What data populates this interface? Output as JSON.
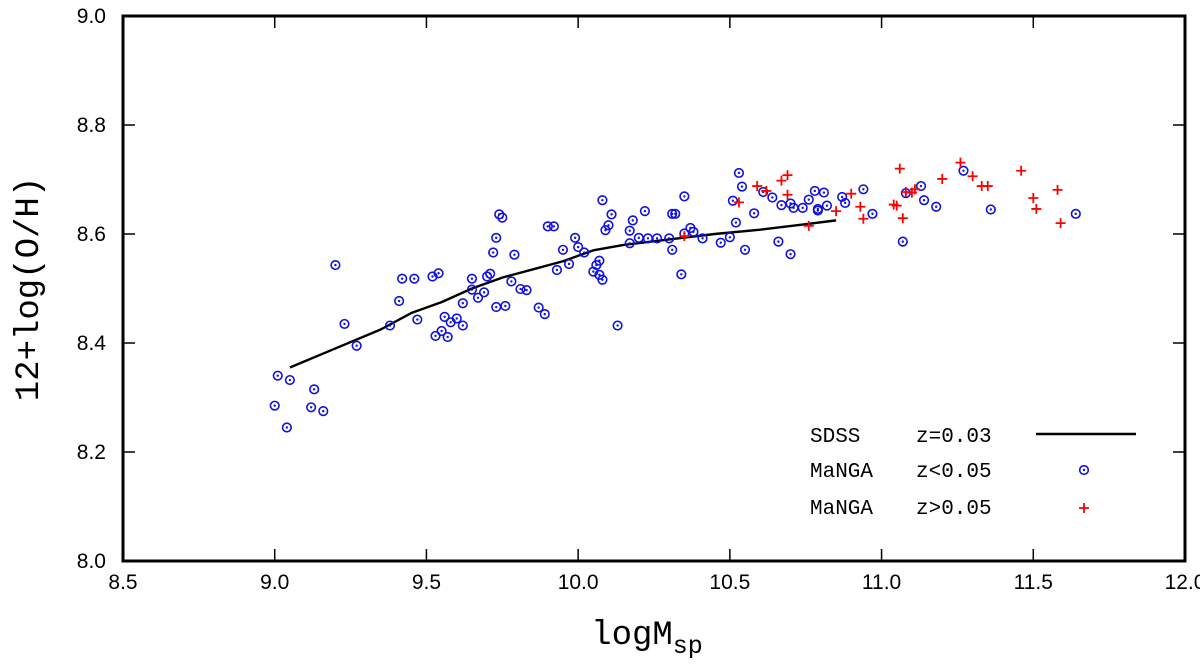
{
  "chart_data": {
    "type": "scatter",
    "title": "",
    "xlabel_main": "logM",
    "xlabel_sub": "sp",
    "ylabel": "12+log(O/H)",
    "xlim": [
      8.5,
      12.0
    ],
    "ylim": [
      8.0,
      9.0
    ],
    "xticks": [
      "8.5",
      "9.0",
      "9.5",
      "10.0",
      "10.5",
      "11.0",
      "11.5",
      "12.0"
    ],
    "yticks": [
      "8.0",
      "8.2",
      "8.4",
      "8.6",
      "8.8",
      "9.0"
    ],
    "legend_position": "bottom-right",
    "colors": {
      "line": "#000000",
      "manga_low": "#1010e0",
      "manga_high": "#ff0000"
    },
    "series": [
      {
        "name": "SDSS z=0.03",
        "label_survey": "SDSS",
        "label_z": "z=0.03",
        "kind": "line",
        "x": [
          9.05,
          9.2,
          9.35,
          9.45,
          9.55,
          9.65,
          9.75,
          9.85,
          9.95,
          10.05,
          10.15,
          10.3,
          10.45,
          10.6,
          10.75,
          10.85
        ],
        "y": [
          8.355,
          8.39,
          8.425,
          8.455,
          8.475,
          8.5,
          8.52,
          8.535,
          8.55,
          8.57,
          8.58,
          8.59,
          8.6,
          8.608,
          8.618,
          8.625
        ]
      },
      {
        "name": "MaNGA z<0.05",
        "label_survey": "MaNGA",
        "label_z": "z<0.05",
        "kind": "circle",
        "x": [
          9.0,
          9.01,
          9.04,
          9.05,
          9.12,
          9.13,
          9.16,
          9.2,
          9.23,
          9.27,
          9.38,
          9.41,
          9.42,
          9.46,
          9.47,
          9.52,
          9.53,
          9.54,
          9.55,
          9.56,
          9.57,
          9.58,
          9.6,
          9.62,
          9.62,
          9.65,
          9.65,
          9.67,
          9.69,
          9.7,
          9.71,
          9.72,
          9.73,
          9.73,
          9.74,
          9.75,
          9.76,
          9.78,
          9.79,
          9.81,
          9.83,
          9.87,
          9.89,
          9.9,
          9.92,
          9.93,
          9.95,
          9.97,
          9.99,
          10.0,
          10.02,
          10.05,
          10.06,
          10.07,
          10.07,
          10.08,
          10.08,
          10.09,
          10.1,
          10.11,
          10.13,
          10.17,
          10.17,
          10.18,
          10.2,
          10.22,
          10.23,
          10.26,
          10.3,
          10.31,
          10.31,
          10.32,
          10.34,
          10.35,
          10.35,
          10.37,
          10.38,
          10.41,
          10.47,
          10.5,
          10.51,
          10.52,
          10.53,
          10.54,
          10.55,
          10.58,
          10.61,
          10.64,
          10.66,
          10.67,
          10.7,
          10.7,
          10.71,
          10.74,
          10.76,
          10.78,
          10.79,
          10.79,
          10.81,
          10.82,
          10.87,
          10.88,
          10.94,
          10.97,
          11.07,
          11.08,
          11.13,
          11.14,
          11.18,
          11.27,
          11.36,
          11.64
        ],
        "y": [
          8.285,
          8.34,
          8.245,
          8.332,
          8.282,
          8.315,
          8.275,
          8.543,
          8.435,
          8.395,
          8.432,
          8.477,
          8.518,
          8.518,
          8.443,
          8.522,
          8.413,
          8.528,
          8.422,
          8.448,
          8.411,
          8.438,
          8.445,
          8.473,
          8.432,
          8.498,
          8.518,
          8.483,
          8.493,
          8.522,
          8.527,
          8.566,
          8.466,
          8.593,
          8.636,
          8.63,
          8.468,
          8.513,
          8.562,
          8.499,
          8.497,
          8.465,
          8.453,
          8.614,
          8.614,
          8.534,
          8.571,
          8.545,
          8.593,
          8.576,
          8.566,
          8.531,
          8.543,
          8.525,
          8.551,
          8.516,
          8.662,
          8.607,
          8.616,
          8.636,
          8.432,
          8.583,
          8.606,
          8.625,
          8.593,
          8.642,
          8.592,
          8.592,
          8.592,
          8.571,
          8.637,
          8.637,
          8.526,
          8.601,
          8.669,
          8.611,
          8.604,
          8.592,
          8.584,
          8.594,
          8.661,
          8.621,
          8.712,
          8.687,
          8.571,
          8.638,
          8.677,
          8.667,
          8.586,
          8.653,
          8.563,
          8.656,
          8.648,
          8.648,
          8.663,
          8.679,
          8.646,
          8.643,
          8.676,
          8.652,
          8.668,
          8.657,
          8.682,
          8.637,
          8.586,
          8.675,
          8.688,
          8.662,
          8.65,
          8.716,
          8.645,
          8.637
        ]
      },
      {
        "name": "MaNGA z>0.05",
        "label_survey": "MaNGA",
        "label_z": "z>0.05",
        "kind": "plus",
        "x": [
          10.35,
          10.53,
          10.59,
          10.62,
          10.67,
          10.69,
          10.69,
          10.76,
          10.85,
          10.9,
          10.93,
          10.94,
          11.04,
          11.05,
          11.06,
          11.07,
          11.08,
          11.1,
          11.11,
          11.2,
          11.26,
          11.3,
          11.33,
          11.35,
          11.46,
          11.5,
          11.51,
          11.58,
          11.59
        ],
        "y": [
          8.596,
          8.658,
          8.688,
          8.679,
          8.698,
          8.672,
          8.708,
          8.615,
          8.642,
          8.674,
          8.65,
          8.628,
          8.654,
          8.652,
          8.72,
          8.629,
          8.677,
          8.676,
          8.682,
          8.701,
          8.731,
          8.706,
          8.688,
          8.688,
          8.716,
          8.666,
          8.646,
          8.681,
          8.62
        ]
      }
    ]
  }
}
